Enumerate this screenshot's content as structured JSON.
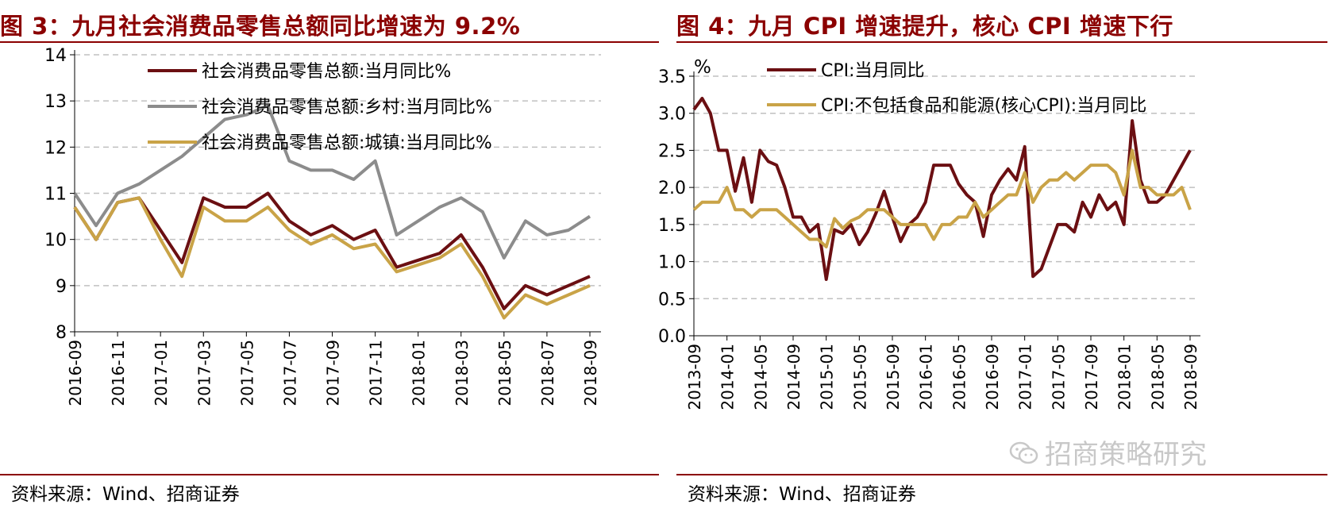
{
  "left": {
    "title": "图 3：九月社会消费品零售总额同比增速为 9.2%",
    "source": "资料来源：Wind、招商证券"
  },
  "right": {
    "title": "图 4：九月 CPI 增速提升，核心 CPI 增速下行",
    "source": "资料来源：Wind、招商证券",
    "watermark": "招商策略研究",
    "watermark_icon": "wechat-icon"
  },
  "colors": {
    "title": "#8B0000",
    "dark_red": "#6B0F12",
    "gray": "#8C8C8C",
    "gold": "#C9A347"
  },
  "chart_data": [
    {
      "type": "line",
      "x": [
        "2016-09",
        "2016-10",
        "2016-11",
        "2016-12",
        "2017-01",
        "2017-02",
        "2017-03",
        "2017-04",
        "2017-05",
        "2017-06",
        "2017-07",
        "2017-08",
        "2017-09",
        "2017-10",
        "2017-11",
        "2017-12",
        "2018-01",
        "2018-02",
        "2018-03",
        "2018-04",
        "2018-05",
        "2018-06",
        "2018-07",
        "2018-08",
        "2018-09"
      ],
      "xticks": [
        "2016-09",
        "2016-11",
        "2017-01",
        "2017-03",
        "2017-05",
        "2017-07",
        "2017-09",
        "2017-11",
        "2018-01",
        "2018-03",
        "2018-05",
        "2018-07",
        "2018-09"
      ],
      "ylim": [
        8,
        14
      ],
      "yticks": [
        "8",
        "9",
        "10",
        "11",
        "12",
        "13",
        "14"
      ],
      "grid": true,
      "legend_position": "top",
      "series": [
        {
          "name": "社会消费品零售总额:当月同比%",
          "color": "#6B0F12",
          "values": [
            10.7,
            10.0,
            10.8,
            10.9,
            10.2,
            9.5,
            10.9,
            10.7,
            10.7,
            11.0,
            10.4,
            10.1,
            10.3,
            10.0,
            10.2,
            9.4,
            9.55,
            9.7,
            10.1,
            9.4,
            8.5,
            9.0,
            8.8,
            9.0,
            9.2
          ]
        },
        {
          "name": "社会消费品零售总额:乡村:当月同比%",
          "color": "#8C8C8C",
          "values": [
            11.0,
            10.3,
            11.0,
            11.2,
            11.5,
            11.8,
            12.2,
            12.6,
            12.7,
            12.9,
            11.7,
            11.5,
            11.5,
            11.3,
            11.7,
            10.1,
            10.4,
            10.7,
            10.9,
            10.6,
            9.6,
            10.4,
            10.1,
            10.2,
            10.5
          ]
        },
        {
          "name": "社会消费品零售总额:城镇:当月同比%",
          "color": "#C9A347",
          "values": [
            10.7,
            10.0,
            10.8,
            10.9,
            10.0,
            9.2,
            10.7,
            10.4,
            10.4,
            10.7,
            10.2,
            9.9,
            10.1,
            9.8,
            9.9,
            9.3,
            9.45,
            9.6,
            9.9,
            9.2,
            8.3,
            8.8,
            8.6,
            8.8,
            9.0
          ]
        }
      ]
    },
    {
      "type": "line",
      "x": [
        "2013-09",
        "2013-10",
        "2013-11",
        "2013-12",
        "2014-01",
        "2014-02",
        "2014-03",
        "2014-04",
        "2014-05",
        "2014-06",
        "2014-07",
        "2014-08",
        "2014-09",
        "2014-10",
        "2014-11",
        "2014-12",
        "2015-01",
        "2015-02",
        "2015-03",
        "2015-04",
        "2015-05",
        "2015-06",
        "2015-07",
        "2015-08",
        "2015-09",
        "2015-10",
        "2015-11",
        "2015-12",
        "2016-01",
        "2016-02",
        "2016-03",
        "2016-04",
        "2016-05",
        "2016-06",
        "2016-07",
        "2016-08",
        "2016-09",
        "2016-10",
        "2016-11",
        "2016-12",
        "2017-01",
        "2017-02",
        "2017-03",
        "2017-04",
        "2017-05",
        "2017-06",
        "2017-07",
        "2017-08",
        "2017-09",
        "2017-10",
        "2017-11",
        "2017-12",
        "2018-01",
        "2018-02",
        "2018-03",
        "2018-04",
        "2018-05",
        "2018-06",
        "2018-07",
        "2018-08",
        "2018-09"
      ],
      "xticks": [
        "2013-09",
        "2014-01",
        "2014-05",
        "2014-09",
        "2015-01",
        "2015-05",
        "2015-09",
        "2016-01",
        "2016-05",
        "2016-09",
        "2017-01",
        "2017-05",
        "2017-09",
        "2018-01",
        "2018-05",
        "2018-09"
      ],
      "ylim": [
        0,
        3.5
      ],
      "yticks": [
        "0.0",
        "0.5",
        "1.0",
        "1.5",
        "2.0",
        "2.5",
        "3.0",
        "3.5"
      ],
      "ylabel": "%",
      "grid": true,
      "legend_position": "top",
      "series": [
        {
          "name": "CPI:当月同比",
          "color": "#6B0F12",
          "values": [
            3.05,
            3.2,
            3.0,
            2.5,
            2.5,
            1.95,
            2.4,
            1.8,
            2.5,
            2.35,
            2.3,
            2.0,
            1.6,
            1.6,
            1.4,
            1.5,
            0.76,
            1.43,
            1.38,
            1.5,
            1.23,
            1.4,
            1.65,
            1.95,
            1.6,
            1.27,
            1.5,
            1.6,
            1.8,
            2.3,
            2.3,
            2.3,
            2.05,
            1.9,
            1.8,
            1.34,
            1.9,
            2.1,
            2.25,
            2.1,
            2.55,
            0.8,
            0.9,
            1.2,
            1.5,
            1.5,
            1.4,
            1.8,
            1.6,
            1.9,
            1.7,
            1.8,
            1.5,
            2.9,
            2.1,
            1.8,
            1.8,
            1.9,
            2.1,
            2.3,
            2.5
          ]
        },
        {
          "name": "CPI:不包括食品和能源(核心CPI):当月同比",
          "color": "#C9A347",
          "values": [
            1.7,
            1.8,
            1.8,
            1.8,
            2.0,
            1.7,
            1.7,
            1.6,
            1.7,
            1.7,
            1.7,
            1.6,
            1.5,
            1.4,
            1.3,
            1.3,
            1.2,
            1.58,
            1.45,
            1.55,
            1.6,
            1.7,
            1.7,
            1.7,
            1.6,
            1.5,
            1.5,
            1.5,
            1.5,
            1.3,
            1.5,
            1.5,
            1.6,
            1.6,
            1.8,
            1.6,
            1.7,
            1.8,
            1.9,
            1.9,
            2.2,
            1.8,
            2.0,
            2.1,
            2.1,
            2.2,
            2.1,
            2.2,
            2.3,
            2.3,
            2.3,
            2.2,
            1.9,
            2.5,
            2.0,
            2.0,
            1.9,
            1.9,
            1.9,
            2.0,
            1.7
          ]
        }
      ]
    }
  ]
}
